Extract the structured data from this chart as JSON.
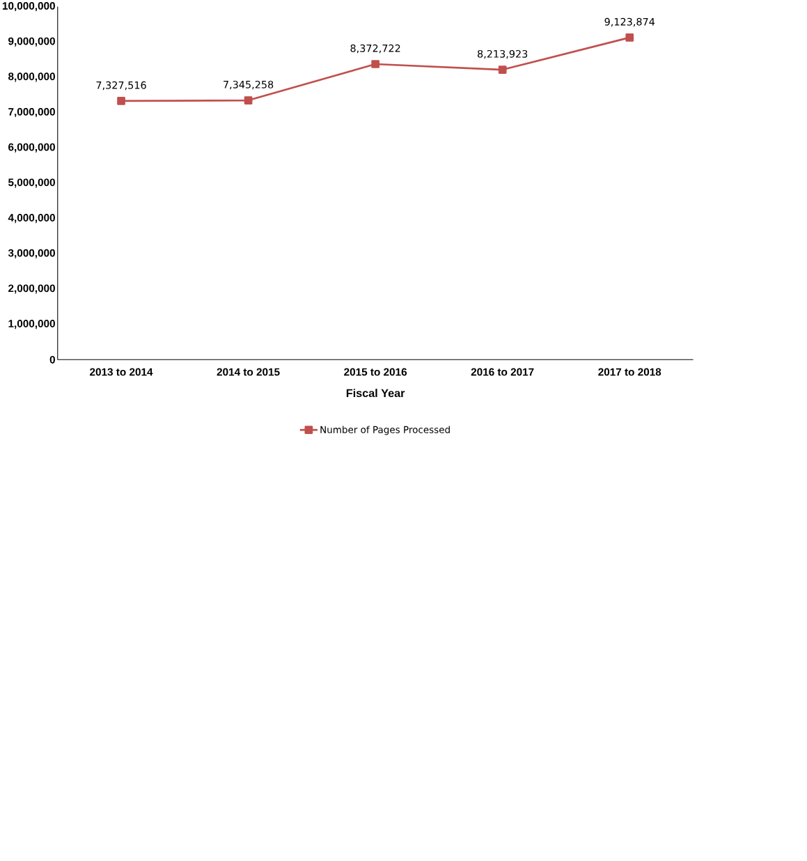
{
  "chart_data": {
    "type": "line",
    "xlabel": "Fiscal Year",
    "categories": [
      "2013 to 2014",
      "2014 to 2015",
      "2015 to 2016",
      "2016 to 2017",
      "2017 to 2018"
    ],
    "series": [
      {
        "name": "Number of Pages Processed",
        "color": "#c0504d",
        "values": [
          7327516,
          7345258,
          8372722,
          8213923,
          9123874
        ],
        "value_labels": [
          "7,327,516",
          "7,345,258",
          "8,372,722",
          "8,213,923",
          "9,123,874"
        ]
      }
    ],
    "ylim": [
      0,
      10000000
    ],
    "yticks": [
      0,
      {
        "value": 1000000,
        "label": "1,000,000"
      },
      {
        "value": 2000000,
        "label": "2,000,000"
      },
      {
        "value": 3000000,
        "label": "3,000,000"
      },
      {
        "value": 4000000,
        "label": "4,000,000"
      },
      {
        "value": 5000000,
        "label": "5,000,000"
      },
      {
        "value": 6000000,
        "label": "6,000,000"
      },
      {
        "value": 7000000,
        "label": "7,000,000"
      },
      {
        "value": 8000000,
        "label": "8,000,000"
      },
      {
        "value": 9000000,
        "label": "9,000,000"
      },
      {
        "value": 10000000,
        "label": "10,000,000"
      }
    ],
    "grid": false,
    "legend": "bottom",
    "marker": "square",
    "line_style": "solid"
  }
}
